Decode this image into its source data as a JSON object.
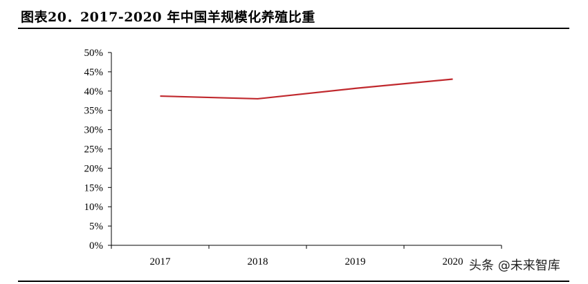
{
  "figure": {
    "title": "图表20．2017-2020 年中国羊规模化养殖比重"
  },
  "watermark": "头条 @未来智库",
  "chart_data": {
    "type": "line",
    "title": "图表20．2017-2020 年中国羊规模化养殖比重",
    "xlabel": "",
    "ylabel": "",
    "categories": [
      "2017",
      "2018",
      "2019",
      "2020"
    ],
    "series": [
      {
        "color": "#c0282d",
        "values": [
          38.7,
          38.0,
          40.7,
          43.1
        ]
      }
    ],
    "ylim": [
      0,
      50
    ],
    "yticks": [
      0,
      5,
      10,
      15,
      20,
      25,
      30,
      35,
      40,
      45,
      50
    ],
    "ytick_labels": [
      "0%",
      "5%",
      "10%",
      "15%",
      "20%",
      "25%",
      "30%",
      "35%",
      "40%",
      "45%",
      "50%"
    ],
    "grid": false,
    "legend": "none"
  }
}
